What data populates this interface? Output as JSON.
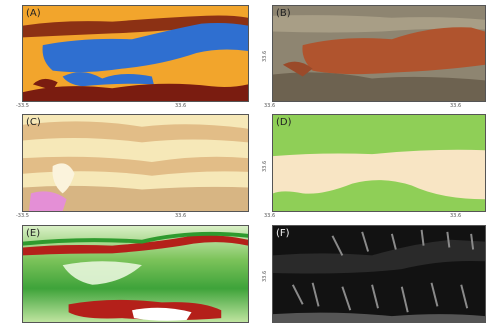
{
  "panels": {
    "a": {
      "label": "(A)",
      "xticks": [
        "-33.5",
        "33.6"
      ]
    },
    "b": {
      "label": "(B)",
      "xticks": [
        "33.6",
        "33.6"
      ],
      "ytick": "33.6"
    },
    "c": {
      "label": "(C)",
      "xticks": [
        "-33.5",
        "33.6"
      ]
    },
    "d": {
      "label": "(D)",
      "xticks": [
        "33.6",
        "33.6"
      ],
      "ytick": "33.6"
    },
    "e": {
      "label": "(E)"
    },
    "f": {
      "label": "(F)",
      "ytick": "33.6"
    }
  },
  "colors": {
    "a_orange": "#f2a52c",
    "a_blue": "#2f6fd0",
    "a_darkred": "#7a1c10",
    "b_red": "#b0542e",
    "b_gray": "#8e8571",
    "c_tan": "#e2bd87",
    "c_cream": "#f6e8b8",
    "c_pink": "#e48fd6",
    "d_green": "#8fcf57",
    "d_cream": "#f8e5c4",
    "e_green": "#2f9a2e",
    "e_lightgreen": "#bfe4a0",
    "e_red": "#b4201a",
    "f_black": "#121212",
    "f_gray": "#8a8a8a"
  }
}
